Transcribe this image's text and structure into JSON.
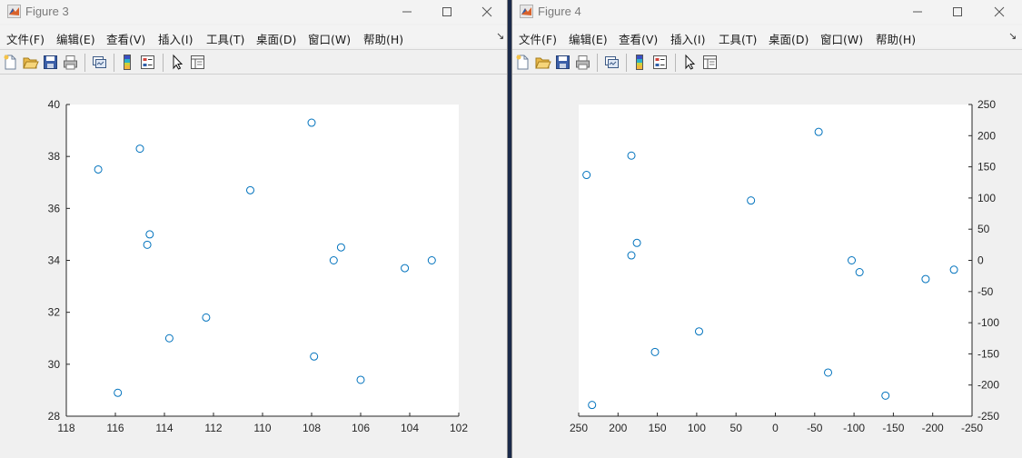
{
  "windows": [
    {
      "id": "figure3",
      "title": "Figure 3",
      "menu": [
        "文件(F)",
        "编辑(E)",
        "查看(V)",
        "插入(I)",
        "工具(T)",
        "桌面(D)",
        "窗口(W)",
        "帮助(H)"
      ],
      "menu_arrow": "↘",
      "toolbar_icons": [
        "new-figure-icon",
        "open-icon",
        "save-icon",
        "print-icon",
        "link-plot-icon",
        "colorbar-icon",
        "legend-icon",
        "pointer-icon",
        "property-editor-icon"
      ]
    },
    {
      "id": "figure4",
      "title": "Figure 4",
      "menu": [
        "文件(F)",
        "编辑(E)",
        "查看(V)",
        "插入(I)",
        "工具(T)",
        "桌面(D)",
        "窗口(W)",
        "帮助(H)"
      ],
      "menu_arrow": "↘",
      "toolbar_icons": [
        "new-figure-icon",
        "open-icon",
        "save-icon",
        "print-icon",
        "link-plot-icon",
        "colorbar-icon",
        "legend-icon",
        "pointer-icon",
        "property-editor-icon"
      ]
    }
  ],
  "chart_data": [
    {
      "type": "scatter",
      "title": "",
      "xlabel": "",
      "ylabel": "",
      "xlim": [
        102,
        118
      ],
      "x_reversed": true,
      "ylim": [
        28,
        40
      ],
      "y_axis_side": "left",
      "xticks": [
        118,
        116,
        114,
        112,
        110,
        108,
        106,
        104,
        102
      ],
      "yticks": [
        28,
        30,
        32,
        34,
        36,
        38,
        40
      ],
      "marker": "circle",
      "color": "#0072BD",
      "grid": false,
      "x": [
        116.7,
        115.0,
        114.6,
        114.7,
        115.9,
        113.8,
        112.3,
        110.5,
        108.0,
        107.9,
        107.1,
        106.8,
        106.0,
        104.2,
        103.1
      ],
      "y": [
        37.5,
        38.3,
        35.0,
        34.6,
        28.9,
        31.0,
        31.8,
        36.7,
        39.3,
        30.3,
        34.0,
        34.5,
        29.4,
        33.7,
        34.0
      ]
    },
    {
      "type": "scatter",
      "title": "",
      "xlabel": "",
      "ylabel": "",
      "xlim": [
        -250,
        250
      ],
      "x_reversed": true,
      "ylim": [
        -250,
        250
      ],
      "y_axis_side": "right",
      "xticks": [
        250,
        200,
        150,
        100,
        50,
        0,
        -50,
        -100,
        -150,
        -200,
        -250
      ],
      "yticks": [
        250,
        200,
        150,
        100,
        50,
        0,
        -50,
        -100,
        -150,
        -200,
        -250
      ],
      "marker": "circle",
      "color": "#0072BD",
      "grid": false,
      "x": [
        240,
        183,
        176,
        183,
        233,
        153,
        97,
        31,
        -55,
        -67,
        -97,
        -107,
        -140,
        -191,
        -227
      ],
      "y": [
        137,
        168,
        28,
        8,
        -232,
        -147,
        -114,
        96,
        206,
        -180,
        0,
        -19,
        -217,
        -30,
        -15
      ]
    }
  ]
}
